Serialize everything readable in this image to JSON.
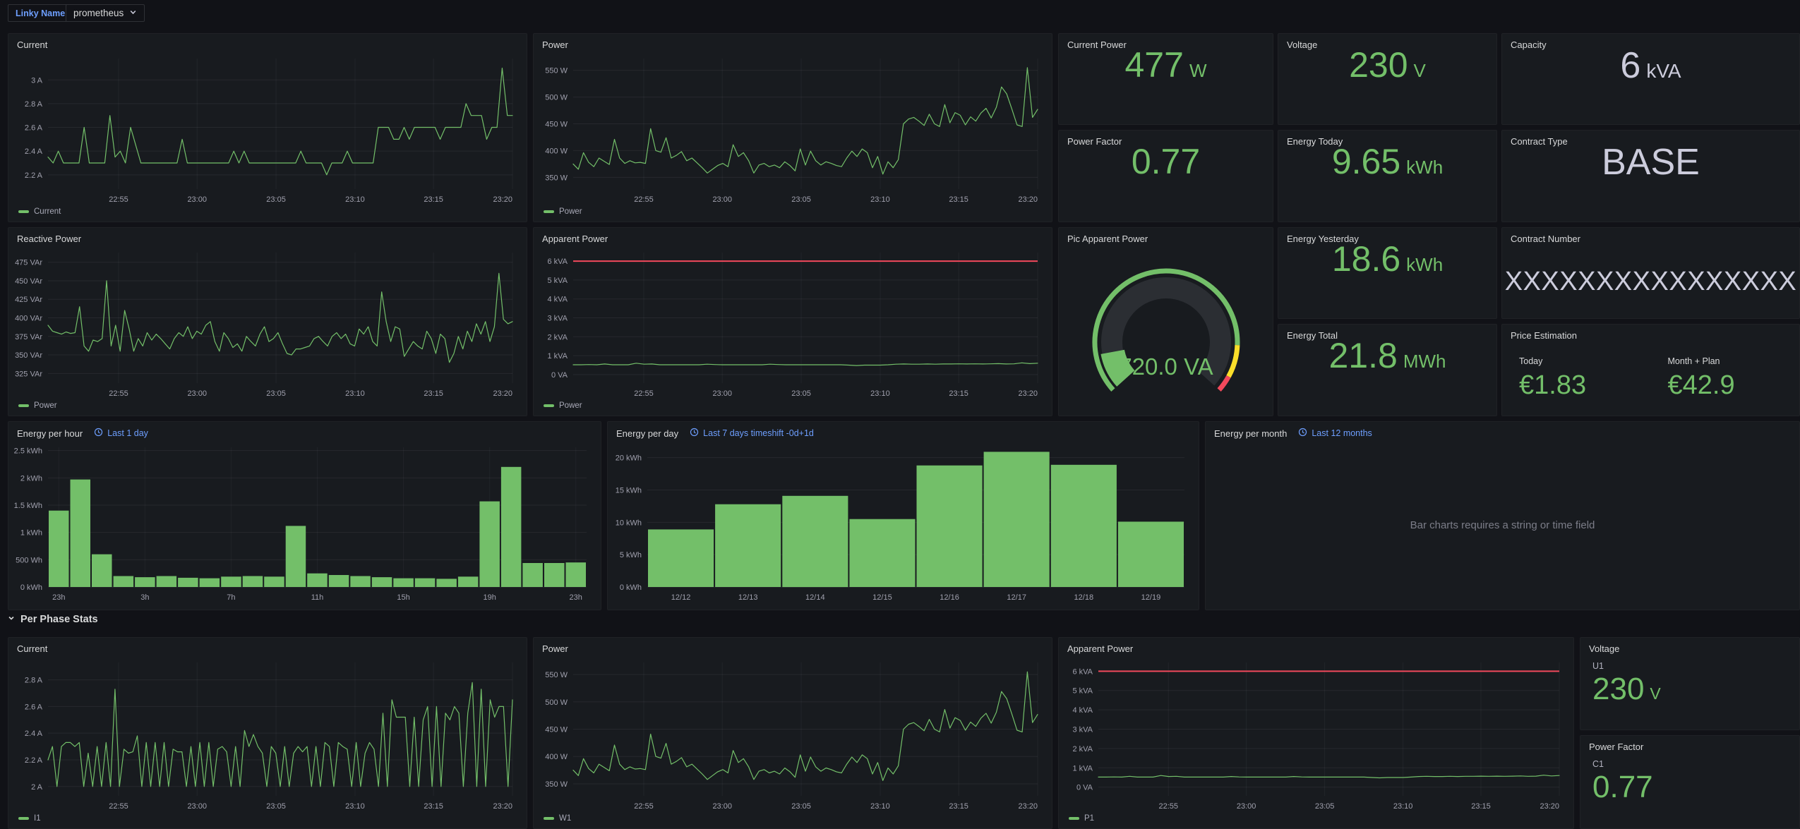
{
  "topbar": {
    "variable_label": "Linky Name",
    "variable_value": "prometheus"
  },
  "row_header": {
    "label": "Per Phase Stats"
  },
  "colors": {
    "green": "#73BF69",
    "red": "#F2495C",
    "yellow": "#FADE2A",
    "link_blue": "#6E9FFF",
    "panel_bg": "#181b1f",
    "page_bg": "#111217"
  },
  "stats": {
    "current_power": {
      "title": "Current Power",
      "value": "477",
      "unit": "W"
    },
    "voltage": {
      "title": "Voltage",
      "value": "230",
      "unit": "V"
    },
    "capacity": {
      "title": "Capacity",
      "value": "6",
      "unit": "kVA"
    },
    "power_factor": {
      "title": "Power Factor",
      "value": "0.77",
      "unit": ""
    },
    "energy_today": {
      "title": "Energy Today",
      "value": "9.65",
      "unit": "kWh"
    },
    "contract_type": {
      "title": "Contract Type",
      "value": "BASE",
      "unit": ""
    },
    "energy_yesterday": {
      "title": "Energy Yesterday",
      "value": "18.6",
      "unit": "kWh"
    },
    "contract_number": {
      "title": "Contract Number",
      "value": "XXXXXXXXXXXXXXXX"
    },
    "energy_total": {
      "title": "Energy Total",
      "value": "21.8",
      "unit": "MWh"
    },
    "price": {
      "title": "Price Estimation",
      "today_label": "Today",
      "today_value": "€1.83",
      "month_label": "Month + Plan",
      "month_value": "€42.9"
    },
    "voltage_u1": {
      "title": "Voltage",
      "series": "U1",
      "value": "230",
      "unit": "V"
    },
    "power_factor_c1": {
      "title": "Power Factor",
      "series": "C1",
      "value": "0.77",
      "unit": ""
    }
  },
  "gauge": {
    "title": "Pic Apparent Power",
    "value": 720,
    "min": 0,
    "max": 6000,
    "value_text": "720.0 VA",
    "threshold_yellow_from": 0.85,
    "threshold_red_from": 0.95
  },
  "panels": {
    "energy_month": {
      "title": "Energy per month",
      "link": "Last 12 months",
      "message": "Bar charts requires a string or time field"
    }
  },
  "charts": {
    "current_top": {
      "title": "Current",
      "legend": "Current",
      "type": "line",
      "ymin": 2.08,
      "ymax": 3.18,
      "yticks": [
        {
          "v": 2.2,
          "label": "2.2 A"
        },
        {
          "v": 2.4,
          "label": "2.4 A"
        },
        {
          "v": 2.6,
          "label": "2.6 A"
        },
        {
          "v": 2.8,
          "label": "2.8 A"
        },
        {
          "v": 3,
          "label": "3 A"
        }
      ],
      "xticks": [
        {
          "f": 0.152,
          "label": "22:55"
        },
        {
          "f": 0.321,
          "label": "23:00"
        },
        {
          "f": 0.491,
          "label": "23:05"
        },
        {
          "f": 0.661,
          "label": "23:10"
        },
        {
          "f": 0.83,
          "label": "23:15"
        },
        {
          "f": 1,
          "label": "23:20"
        }
      ],
      "values": [
        2.35,
        2.3,
        2.4,
        2.3,
        2.3,
        2.3,
        2.3,
        2.6,
        2.3,
        2.3,
        2.3,
        2.3,
        2.7,
        2.35,
        2.4,
        2.3,
        2.6,
        2.45,
        2.3,
        2.3,
        2.3,
        2.3,
        2.3,
        2.3,
        2.3,
        2.3,
        2.5,
        2.3,
        2.3,
        2.3,
        2.3,
        2.3,
        2.3,
        2.3,
        2.3,
        2.3,
        2.4,
        2.3,
        2.4,
        2.3,
        2.3,
        2.3,
        2.3,
        2.3,
        2.3,
        2.3,
        2.3,
        2.3,
        2.3,
        2.4,
        2.3,
        2.3,
        2.3,
        2.3,
        2.2,
        2.3,
        2.3,
        2.3,
        2.4,
        2.3,
        2.3,
        2.3,
        2.3,
        2.3,
        2.6,
        2.6,
        2.6,
        2.5,
        2.5,
        2.6,
        2.5,
        2.6,
        2.6,
        2.6,
        2.6,
        2.6,
        2.5,
        2.6,
        2.6,
        2.6,
        2.6,
        2.8,
        2.7,
        2.7,
        2.7,
        2.5,
        2.6,
        2.6,
        3.1,
        2.7,
        2.7
      ]
    },
    "power_top": {
      "title": "Power",
      "legend": "Power",
      "type": "line",
      "ymin": 328,
      "ymax": 572,
      "yticks": [
        {
          "v": 350,
          "label": "350 W"
        },
        {
          "v": 400,
          "label": "400 W"
        },
        {
          "v": 450,
          "label": "450 W"
        },
        {
          "v": 500,
          "label": "500 W"
        },
        {
          "v": 550,
          "label": "550 W"
        }
      ],
      "xticks": [
        {
          "f": 0.152,
          "label": "22:55"
        },
        {
          "f": 0.321,
          "label": "23:00"
        },
        {
          "f": 0.491,
          "label": "23:05"
        },
        {
          "f": 0.661,
          "label": "23:10"
        },
        {
          "f": 0.83,
          "label": "23:15"
        },
        {
          "f": 1,
          "label": "23:20"
        }
      ],
      "values": [
        375,
        365,
        396,
        378,
        370,
        386,
        380,
        374,
        421,
        386,
        376,
        381,
        377,
        378,
        376,
        441,
        400,
        397,
        424,
        386,
        391,
        398,
        381,
        386,
        377,
        368,
        358,
        365,
        372,
        376,
        370,
        411,
        389,
        396,
        381,
        358,
        373,
        376,
        370,
        373,
        368,
        379,
        372,
        362,
        403,
        373,
        399,
        381,
        373,
        379,
        376,
        372,
        370,
        386,
        399,
        389,
        403,
        396,
        368,
        389,
        356,
        379,
        368,
        383,
        450,
        459,
        462,
        455,
        447,
        468,
        450,
        445,
        486,
        452,
        471,
        466,
        448,
        463,
        455,
        470,
        479,
        461,
        481,
        519,
        506,
        478,
        448,
        445,
        555,
        462,
        477
      ]
    },
    "reactive_power": {
      "title": "Reactive Power",
      "legend": "Power",
      "type": "line",
      "ymin": 312,
      "ymax": 488,
      "yticks": [
        {
          "v": 325,
          "label": "325 VAr"
        },
        {
          "v": 350,
          "label": "350 VAr"
        },
        {
          "v": 375,
          "label": "375 VAr"
        },
        {
          "v": 400,
          "label": "400 VAr"
        },
        {
          "v": 425,
          "label": "425 VAr"
        },
        {
          "v": 450,
          "label": "450 VAr"
        },
        {
          "v": 475,
          "label": "475 VAr"
        }
      ],
      "xticks": [
        {
          "f": 0.152,
          "label": "22:55"
        },
        {
          "f": 0.321,
          "label": "23:00"
        },
        {
          "f": 0.491,
          "label": "23:05"
        },
        {
          "f": 0.661,
          "label": "23:10"
        },
        {
          "f": 0.83,
          "label": "23:15"
        },
        {
          "f": 1,
          "label": "23:20"
        }
      ],
      "values": [
        390,
        382,
        380,
        378,
        381,
        379,
        380,
        415,
        362,
        355,
        370,
        368,
        372,
        450,
        362,
        390,
        355,
        410,
        385,
        355,
        372,
        362,
        380,
        370,
        378,
        372,
        365,
        358,
        372,
        380,
        375,
        388,
        372,
        382,
        378,
        390,
        395,
        368,
        355,
        380,
        372,
        360,
        365,
        355,
        375,
        368,
        362,
        378,
        388,
        368,
        372,
        380,
        365,
        352,
        350,
        358,
        358,
        360,
        362,
        372,
        375,
        368,
        362,
        375,
        380,
        372,
        378,
        365,
        362,
        385,
        378,
        388,
        368,
        362,
        435,
        395,
        368,
        388,
        385,
        348,
        358,
        368,
        362,
        358,
        382,
        372,
        352,
        378,
        372,
        340,
        352,
        375,
        358,
        382,
        368,
        392,
        378,
        395,
        368,
        388,
        460,
        398,
        392,
        395
      ]
    },
    "apparent_power": {
      "title": "Apparent Power",
      "legend": "Power",
      "type": "line",
      "ymin": -0.45,
      "ymax": 6.45,
      "threshold": 6,
      "yticks": [
        {
          "v": 0,
          "label": "0 VA"
        },
        {
          "v": 1,
          "label": "1 kVA"
        },
        {
          "v": 2,
          "label": "2 kVA"
        },
        {
          "v": 3,
          "label": "3 kVA"
        },
        {
          "v": 4,
          "label": "4 kVA"
        },
        {
          "v": 5,
          "label": "5 kVA"
        },
        {
          "v": 6,
          "label": "6 kVA"
        }
      ],
      "xticks": [
        {
          "f": 0.152,
          "label": "22:55"
        },
        {
          "f": 0.321,
          "label": "23:00"
        },
        {
          "f": 0.491,
          "label": "23:05"
        },
        {
          "f": 0.661,
          "label": "23:10"
        },
        {
          "f": 0.83,
          "label": "23:15"
        },
        {
          "f": 1,
          "label": "23:20"
        }
      ],
      "values": [
        0.52,
        0.52,
        0.53,
        0.52,
        0.56,
        0.52,
        0.52,
        0.52,
        0.6,
        0.55,
        0.56,
        0.52,
        0.52,
        0.52,
        0.52,
        0.52,
        0.52,
        0.55,
        0.53,
        0.52,
        0.52,
        0.52,
        0.52,
        0.52,
        0.52,
        0.55,
        0.53,
        0.52,
        0.52,
        0.52,
        0.52,
        0.52,
        0.52,
        0.52,
        0.52,
        0.5,
        0.48,
        0.5,
        0.5,
        0.5,
        0.52,
        0.55,
        0.56,
        0.55,
        0.55,
        0.56,
        0.55,
        0.56,
        0.56,
        0.57,
        0.56,
        0.57,
        0.56,
        0.57,
        0.58,
        0.56,
        0.57,
        0.62,
        0.58,
        0.6
      ]
    },
    "energy_hour": {
      "title": "Energy per hour",
      "link": "Last 1 day",
      "type": "bar",
      "ymin": 0,
      "ymax": 2.56,
      "bargrid": true,
      "yticks": [
        {
          "v": 0,
          "label": "0 kWh"
        },
        {
          "v": 0.5,
          "label": "500 Wh"
        },
        {
          "v": 1,
          "label": "1 kWh"
        },
        {
          "v": 1.5,
          "label": "1.5 kWh"
        },
        {
          "v": 2,
          "label": "2 kWh"
        },
        {
          "v": 2.5,
          "label": "2.5 kWh"
        }
      ],
      "barticks": [
        {
          "i": 0,
          "label": "23h"
        },
        {
          "i": 4,
          "label": "3h"
        },
        {
          "i": 8,
          "label": "7h"
        },
        {
          "i": 12,
          "label": "11h"
        },
        {
          "i": 16,
          "label": "15h"
        },
        {
          "i": 20,
          "label": "19h"
        },
        {
          "i": 24,
          "label": "23h"
        }
      ],
      "values": [
        1.4,
        1.97,
        0.6,
        0.2,
        0.18,
        0.2,
        0.17,
        0.16,
        0.19,
        0.2,
        0.19,
        1.12,
        0.25,
        0.22,
        0.2,
        0.18,
        0.16,
        0.16,
        0.15,
        0.19,
        1.57,
        2.2,
        0.44,
        0.44,
        0.45
      ]
    },
    "energy_day": {
      "title": "Energy per day",
      "link": "Last 7 days timeshift -0d+1d",
      "type": "bar",
      "ymin": 0,
      "ymax": 21.6,
      "yticks": [
        {
          "v": 0,
          "label": "0 kWh"
        },
        {
          "v": 5,
          "label": "5 kWh"
        },
        {
          "v": 10,
          "label": "10 kWh"
        },
        {
          "v": 15,
          "label": "15 kWh"
        },
        {
          "v": 20,
          "label": "20 kWh"
        }
      ],
      "barticks": [
        {
          "i": 0,
          "label": "12/12"
        },
        {
          "i": 1,
          "label": "12/13"
        },
        {
          "i": 2,
          "label": "12/14"
        },
        {
          "i": 3,
          "label": "12/15"
        },
        {
          "i": 4,
          "label": "12/16"
        },
        {
          "i": 5,
          "label": "12/17"
        },
        {
          "i": 6,
          "label": "12/18"
        },
        {
          "i": 7,
          "label": "12/19"
        }
      ],
      "values": [
        8.9,
        12.8,
        14.1,
        10.5,
        18.8,
        20.9,
        18.9,
        10.1
      ]
    },
    "current_phase": {
      "title": "Current",
      "legend": "I1",
      "type": "line",
      "ymin": 1.93,
      "ymax": 2.93,
      "yticks": [
        {
          "v": 2,
          "label": "2 A"
        },
        {
          "v": 2.2,
          "label": "2.2 A"
        },
        {
          "v": 2.4,
          "label": "2.4 A"
        },
        {
          "v": 2.6,
          "label": "2.6 A"
        },
        {
          "v": 2.8,
          "label": "2.8 A"
        }
      ],
      "xticks": [
        {
          "f": 0.152,
          "label": "22:55"
        },
        {
          "f": 0.321,
          "label": "23:00"
        },
        {
          "f": 0.491,
          "label": "23:05"
        },
        {
          "f": 0.661,
          "label": "23:10"
        },
        {
          "f": 0.83,
          "label": "23:15"
        },
        {
          "f": 1,
          "label": "23:20"
        }
      ],
      "values": [
        2.2,
        2.3,
        2.0,
        2.3,
        2.33,
        2.33,
        2.3,
        2.33,
        2.0,
        2.25,
        2.0,
        2.3,
        2.0,
        2.33,
        2.0,
        2.73,
        2.0,
        2.28,
        2.25,
        2.26,
        2.38,
        2.0,
        2.33,
        2.0,
        2.33,
        2.0,
        2.33,
        2.0,
        2.28,
        2.26,
        2.26,
        2.0,
        2.3,
        2.0,
        2.33,
        2.0,
        2.33,
        2.0,
        2.28,
        2.3,
        2.26,
        2.0,
        2.3,
        2.0,
        2.42,
        2.3,
        2.39,
        2.3,
        2.25,
        2.0,
        2.3,
        2.25,
        2.0,
        2.3,
        2.0,
        2.25,
        2.3,
        2.26,
        2.3,
        2.0,
        2.3,
        2.0,
        2.33,
        2.3,
        2.0,
        2.33,
        2.3,
        2.28,
        2.0,
        2.33,
        2.0,
        2.25,
        2.33,
        2.28,
        2.0,
        2.55,
        2.0,
        2.65,
        2.52,
        2.52,
        2.52,
        2.0,
        2.52,
        2.0,
        2.5,
        2.6,
        2.0,
        2.6,
        2.0,
        2.55,
        2.5,
        2.6,
        2.55,
        2.0,
        2.55,
        2.78,
        2.0,
        2.73,
        2.0,
        2.65,
        2.52,
        2.6,
        2.6,
        2.0,
        2.65
      ]
    },
    "power_phase": {
      "title": "Power",
      "legend": "W1",
      "type": "line",
      "ymin": 328,
      "ymax": 572,
      "yticks": [
        {
          "v": 350,
          "label": "350 W"
        },
        {
          "v": 400,
          "label": "400 W"
        },
        {
          "v": 450,
          "label": "450 W"
        },
        {
          "v": 500,
          "label": "500 W"
        },
        {
          "v": 550,
          "label": "550 W"
        }
      ],
      "xticks": [
        {
          "f": 0.152,
          "label": "22:55"
        },
        {
          "f": 0.321,
          "label": "23:00"
        },
        {
          "f": 0.491,
          "label": "23:05"
        },
        {
          "f": 0.661,
          "label": "23:10"
        },
        {
          "f": 0.83,
          "label": "23:15"
        },
        {
          "f": 1,
          "label": "23:20"
        }
      ],
      "values": [
        375,
        365,
        396,
        378,
        370,
        386,
        380,
        374,
        421,
        386,
        376,
        381,
        377,
        378,
        376,
        441,
        400,
        397,
        424,
        386,
        391,
        398,
        381,
        386,
        377,
        368,
        358,
        365,
        372,
        376,
        370,
        411,
        389,
        396,
        381,
        358,
        373,
        376,
        370,
        373,
        368,
        379,
        372,
        362,
        403,
        373,
        399,
        381,
        373,
        379,
        376,
        372,
        370,
        386,
        399,
        389,
        403,
        396,
        368,
        389,
        356,
        379,
        368,
        383,
        450,
        459,
        462,
        455,
        447,
        468,
        450,
        445,
        486,
        452,
        471,
        466,
        448,
        463,
        455,
        470,
        479,
        461,
        481,
        519,
        506,
        478,
        448,
        445,
        555,
        462,
        477
      ]
    },
    "apparent_phase": {
      "title": "Apparent Power",
      "legend": "P1",
      "type": "line",
      "ymin": -0.45,
      "ymax": 6.45,
      "threshold": 6,
      "yticks": [
        {
          "v": 0,
          "label": "0 VA"
        },
        {
          "v": 1,
          "label": "1 kVA"
        },
        {
          "v": 2,
          "label": "2 kVA"
        },
        {
          "v": 3,
          "label": "3 kVA"
        },
        {
          "v": 4,
          "label": "4 kVA"
        },
        {
          "v": 5,
          "label": "5 kVA"
        },
        {
          "v": 6,
          "label": "6 kVA"
        }
      ],
      "xticks": [
        {
          "f": 0.152,
          "label": "22:55"
        },
        {
          "f": 0.321,
          "label": "23:00"
        },
        {
          "f": 0.491,
          "label": "23:05"
        },
        {
          "f": 0.661,
          "label": "23:10"
        },
        {
          "f": 0.83,
          "label": "23:15"
        },
        {
          "f": 1,
          "label": "23:20"
        }
      ],
      "values": [
        0.52,
        0.52,
        0.53,
        0.52,
        0.56,
        0.52,
        0.52,
        0.52,
        0.6,
        0.55,
        0.56,
        0.52,
        0.52,
        0.52,
        0.52,
        0.52,
        0.52,
        0.55,
        0.53,
        0.52,
        0.52,
        0.52,
        0.52,
        0.52,
        0.52,
        0.55,
        0.53,
        0.52,
        0.52,
        0.52,
        0.52,
        0.52,
        0.52,
        0.52,
        0.52,
        0.5,
        0.48,
        0.5,
        0.5,
        0.5,
        0.52,
        0.55,
        0.56,
        0.55,
        0.55,
        0.56,
        0.55,
        0.56,
        0.56,
        0.57,
        0.56,
        0.57,
        0.56,
        0.57,
        0.58,
        0.56,
        0.57,
        0.62,
        0.58,
        0.6
      ]
    }
  }
}
